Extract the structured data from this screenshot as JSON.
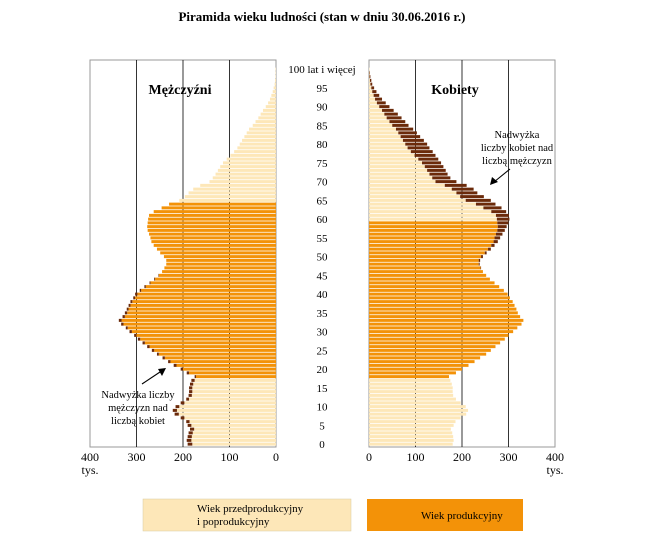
{
  "chart_data": {
    "type": "bar",
    "orientation": "population-pyramid",
    "title": "Piramida wieku ludności (stan w dniu 30.06.2016 r.)",
    "x_unit": "tys.",
    "xlim": [
      0,
      400
    ],
    "x_ticks": [
      "400",
      "300",
      "200",
      "100",
      "0"
    ],
    "x_ticks_right": [
      "0",
      "100",
      "200",
      "300",
      "400"
    ],
    "age_ticks": [
      "0",
      "5",
      "10",
      "15",
      "20",
      "25",
      "30",
      "35",
      "40",
      "45",
      "50",
      "55",
      "60",
      "65",
      "70",
      "75",
      "80",
      "85",
      "90",
      "95",
      "100 lat i więcej"
    ],
    "grid": true,
    "productive_age": {
      "men": [
        18,
        64
      ],
      "women": [
        18,
        59
      ]
    },
    "colors": {
      "nonproductive": "#FDE7B8",
      "productive": "#F39208",
      "excess": "#6B2A0A",
      "gridline": "#000000"
    },
    "panels": {
      "men": {
        "label": "Mężczyźni"
      },
      "women": {
        "label": "Kobiety"
      }
    },
    "ages": [
      0,
      1,
      2,
      3,
      4,
      5,
      6,
      7,
      8,
      9,
      10,
      11,
      12,
      13,
      14,
      15,
      16,
      17,
      18,
      19,
      20,
      21,
      22,
      23,
      24,
      25,
      26,
      27,
      28,
      29,
      30,
      31,
      32,
      33,
      34,
      35,
      36,
      37,
      38,
      39,
      40,
      41,
      42,
      43,
      44,
      45,
      46,
      47,
      48,
      49,
      50,
      51,
      52,
      53,
      54,
      55,
      56,
      57,
      58,
      59,
      60,
      61,
      62,
      63,
      64,
      65,
      66,
      67,
      68,
      69,
      70,
      71,
      72,
      73,
      74,
      75,
      76,
      77,
      78,
      79,
      80,
      81,
      82,
      83,
      84,
      85,
      86,
      87,
      88,
      89,
      90,
      91,
      92,
      93,
      94,
      95,
      96,
      97,
      98,
      99,
      100
    ],
    "series": [
      {
        "name": "Mężczyźni",
        "values": [
          190,
          192,
          190,
          188,
          185,
          190,
          193,
          205,
          218,
          222,
          216,
          205,
          193,
          188,
          187,
          187,
          185,
          182,
          175,
          192,
          205,
          220,
          232,
          244,
          256,
          267,
          277,
          287,
          297,
          305,
          315,
          323,
          333,
          338,
          330,
          325,
          321,
          317,
          313,
          307,
          303,
          293,
          283,
          272,
          262,
          253,
          245,
          240,
          236,
          236,
          241,
          249,
          256,
          263,
          268,
          270,
          273,
          276,
          277,
          276,
          275,
          273,
          263,
          246,
          230,
          208,
          196,
          188,
          178,
          163,
          143,
          136,
          130,
          125,
          120,
          114,
          106,
          98,
          90,
          83,
          78,
          73,
          68,
          63,
          58,
          50,
          44,
          38,
          33,
          28,
          22,
          17,
          13,
          10,
          7,
          5,
          3,
          2,
          1,
          1,
          1
        ]
      },
      {
        "name": "Kobiety",
        "values": [
          180,
          182,
          181,
          179,
          176,
          182,
          186,
          197,
          209,
          213,
          208,
          197,
          187,
          181,
          180,
          180,
          178,
          175,
          172,
          187,
          200,
          214,
          227,
          239,
          252,
          262,
          272,
          282,
          292,
          300,
          310,
          319,
          328,
          332,
          325,
          320,
          317,
          313,
          309,
          303,
          298,
          290,
          280,
          270,
          260,
          252,
          245,
          241,
          238,
          239,
          245,
          253,
          262,
          270,
          277,
          282,
          287,
          292,
          296,
          300,
          302,
          301,
          295,
          285,
          272,
          262,
          247,
          233,
          225,
          210,
          188,
          175,
          169,
          165,
          160,
          155,
          149,
          143,
          137,
          130,
          125,
          118,
          110,
          103,
          95,
          85,
          78,
          70,
          62,
          53,
          44,
          36,
          28,
          22,
          16,
          11,
          7,
          5,
          3,
          2,
          1
        ]
      }
    ],
    "annotations": {
      "women_excess": [
        "Nadwyżka",
        "liczby kobiet nad",
        "liczbą mężczyzn"
      ],
      "men_excess": [
        "Nadwyżka liczby",
        "mężczyzn nad",
        "liczbą kobiet"
      ]
    },
    "legend": {
      "nonproductive": [
        "Wiek przedprodukcyjny",
        "i poprodukcyjny"
      ],
      "productive": "Wiek produkcyjny"
    }
  }
}
